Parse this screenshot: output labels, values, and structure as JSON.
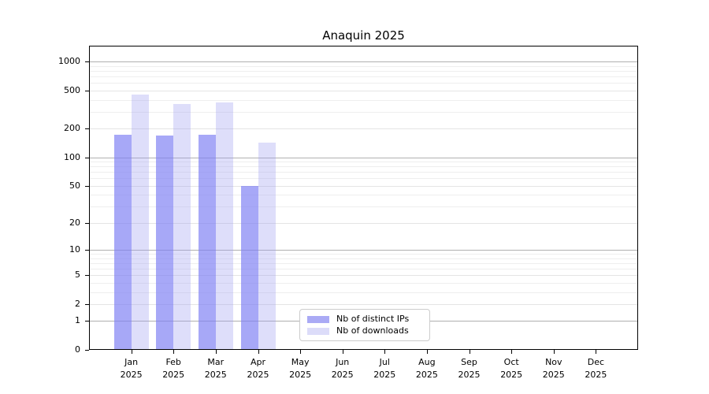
{
  "chart_data": {
    "type": "bar",
    "title": "Anaquin 2025",
    "categories": [
      "Jan",
      "Feb",
      "Mar",
      "Apr",
      "May",
      "Jun",
      "Jul",
      "Aug",
      "Sep",
      "Oct",
      "Nov",
      "Dec"
    ],
    "year": "2025",
    "series": [
      {
        "name": "Nb of distinct IPs",
        "color": "#aaaaf5",
        "fill": "rgba(125,127,243,0.68)",
        "values": [
          172,
          168,
          172,
          50,
          0,
          0,
          0,
          0,
          0,
          0,
          0,
          0
        ]
      },
      {
        "name": "Nb of downloads",
        "color": "#dcdcf9",
        "fill": "rgba(160,160,240,0.35)",
        "values": [
          450,
          360,
          375,
          142,
          0,
          0,
          0,
          0,
          0,
          0,
          0,
          0
        ]
      }
    ],
    "yticks": [
      0,
      1,
      2,
      5,
      10,
      20,
      50,
      100,
      200,
      500,
      1000
    ],
    "ylim": [
      0,
      1000
    ],
    "scale": "log1p",
    "grid": {
      "major": [
        1,
        10,
        100,
        1000
      ],
      "mid": [
        2,
        5,
        20,
        50,
        200,
        500
      ],
      "minor": [
        3,
        4,
        6,
        7,
        8,
        9,
        30,
        40,
        60,
        70,
        80,
        90,
        300,
        400,
        600,
        700,
        800,
        900
      ],
      "major_color": "#b0b0b0",
      "mid_color": "#e4e4e4",
      "minor_color": "#eeeeee"
    },
    "legend_position": "lower center"
  }
}
